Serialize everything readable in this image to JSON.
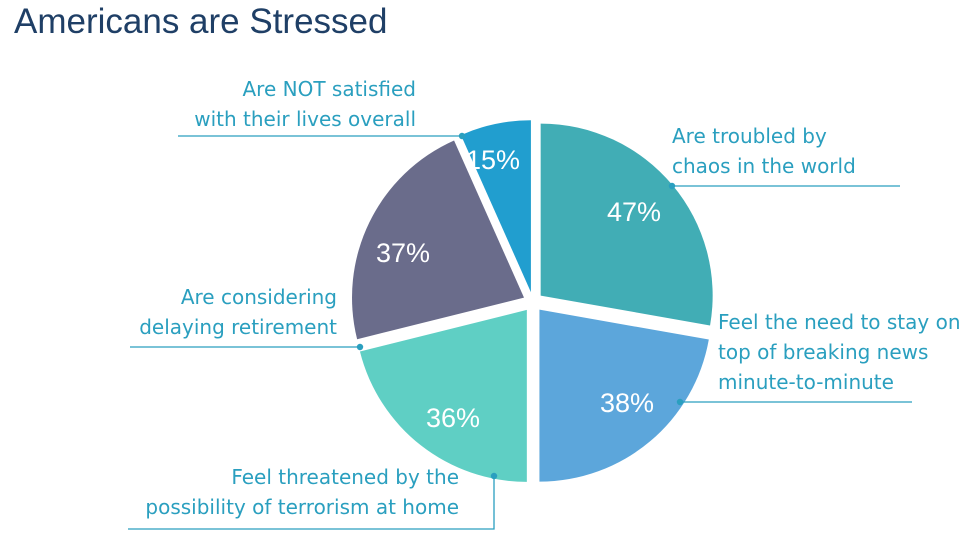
{
  "chart_data": {
    "type": "pie",
    "title": "Americans are Stressed",
    "slices": [
      {
        "label": [
          "Are troubled by",
          "chaos in the world"
        ],
        "value": 47,
        "value_label": "47%",
        "color": "#41adb5"
      },
      {
        "label": [
          "Feel the need to stay on",
          "top of breaking news",
          "minute-to-minute"
        ],
        "value": 38,
        "value_label": "38%",
        "color": "#5ca6db"
      },
      {
        "label": [
          "Feel threatened by the",
          "possibility of terrorism at home"
        ],
        "value": 36,
        "value_label": "36%",
        "color": "#5fcfc4"
      },
      {
        "label": [
          "Are considering",
          "delaying retirement"
        ],
        "value": 37,
        "value_label": "37%",
        "color": "#6a6c8b"
      },
      {
        "label": [
          "Are NOT satisfied",
          "with their lives overall"
        ],
        "value": 15,
        "value_label": "15%",
        "color": "#219ecf"
      }
    ]
  }
}
